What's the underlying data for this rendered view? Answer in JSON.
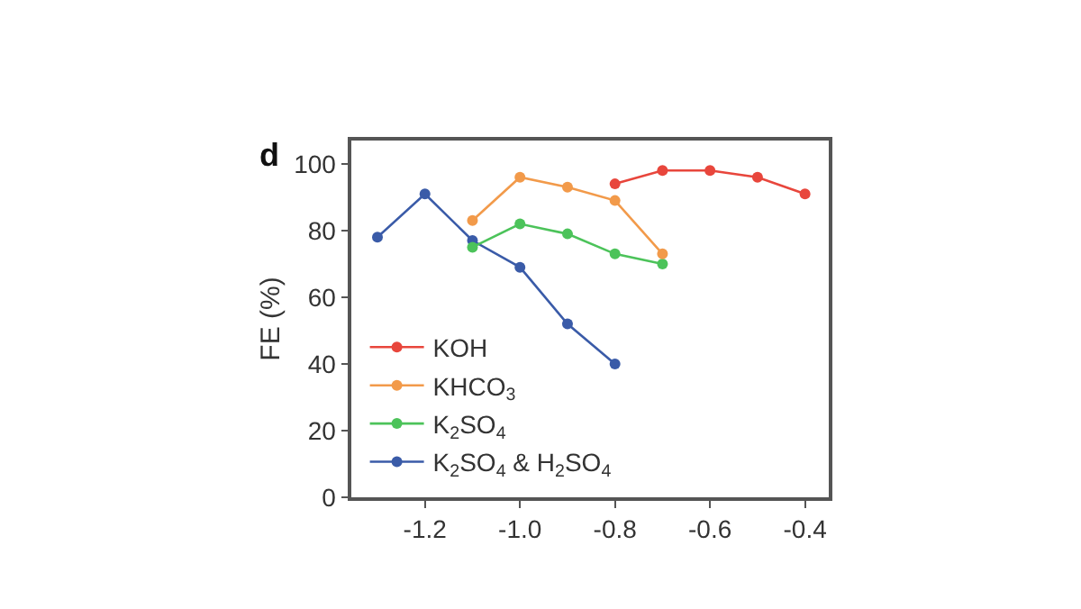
{
  "chart_data": {
    "type": "line",
    "title": "d",
    "ylabel": "FE (%)",
    "x": [
      -1.3,
      -1.2,
      -1.1,
      -1.0,
      -0.9,
      -0.8,
      -0.7,
      -0.6,
      -0.5,
      -0.4
    ],
    "xlim": [
      -1.355,
      -0.35
    ],
    "xticks": [
      -1.2,
      {
        "value": -1.0,
        "label": "-1.0"
      },
      -0.8,
      -0.6,
      -0.4
    ],
    "ylim": [
      0,
      107
    ],
    "yticks": [
      0,
      20,
      40,
      60,
      80,
      100
    ],
    "marker": "circle",
    "line_style": "solid",
    "legend": "bottom left",
    "series": [
      {
        "name": "KOH",
        "color": "#e8463c",
        "values": [
          null,
          null,
          null,
          null,
          null,
          94,
          98,
          98,
          96,
          91
        ]
      },
      {
        "name": "KHCO$_{3}$",
        "color": "#f29a4a",
        "values": [
          null,
          null,
          83,
          96,
          93,
          89,
          73,
          null,
          null,
          null
        ]
      },
      {
        "name": "K$_{2}$SO$_{4}$",
        "color": "#4cc35a",
        "values": [
          null,
          null,
          75,
          82,
          79,
          73,
          70,
          null,
          null,
          null
        ]
      },
      {
        "name": "K$_{2}$SO$_{4}$ & H$_{2}$SO$_{4}$",
        "color": "#3a5ba8",
        "values": [
          78,
          91,
          77,
          69,
          52,
          40,
          null,
          null,
          null,
          null
        ]
      }
    ]
  }
}
